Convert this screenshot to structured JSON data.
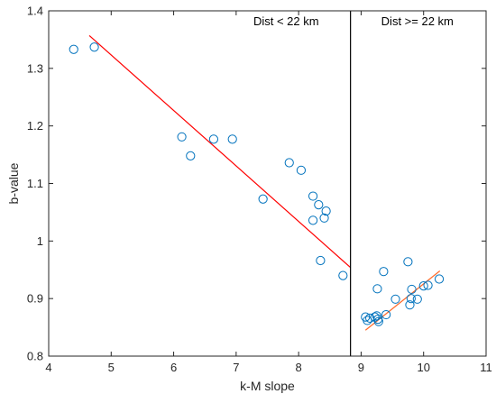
{
  "chart_data": {
    "type": "scatter",
    "title": "",
    "xlabel": "k-M slope",
    "ylabel": "b-value",
    "xlim": [
      4,
      11
    ],
    "ylim": [
      0.8,
      1.4
    ],
    "xticks": [
      4,
      5,
      6,
      7,
      8,
      9,
      10,
      11
    ],
    "yticks": [
      0.8,
      0.9,
      1,
      1.1,
      1.2,
      1.3,
      1.4
    ],
    "xtick_labels": [
      "4",
      "5",
      "6",
      "7",
      "8",
      "9",
      "10",
      "11"
    ],
    "ytick_labels": [
      "0.8",
      "0.9",
      "1",
      "1.1",
      "1.2",
      "1.3",
      "1.4"
    ],
    "grid": false,
    "points": [
      {
        "x": 4.4,
        "y": 1.333
      },
      {
        "x": 4.73,
        "y": 1.337
      },
      {
        "x": 6.13,
        "y": 1.181
      },
      {
        "x": 6.27,
        "y": 1.148
      },
      {
        "x": 6.64,
        "y": 1.177
      },
      {
        "x": 6.94,
        "y": 1.177
      },
      {
        "x": 7.43,
        "y": 1.073
      },
      {
        "x": 7.85,
        "y": 1.136
      },
      {
        "x": 8.04,
        "y": 1.123
      },
      {
        "x": 8.23,
        "y": 1.078
      },
      {
        "x": 8.32,
        "y": 1.063
      },
      {
        "x": 8.44,
        "y": 1.052
      },
      {
        "x": 8.23,
        "y": 1.036
      },
      {
        "x": 8.41,
        "y": 1.04
      },
      {
        "x": 8.35,
        "y": 0.966
      },
      {
        "x": 8.71,
        "y": 0.94
      },
      {
        "x": 9.07,
        "y": 0.868
      },
      {
        "x": 9.1,
        "y": 0.862
      },
      {
        "x": 9.14,
        "y": 0.866
      },
      {
        "x": 9.22,
        "y": 0.868
      },
      {
        "x": 9.25,
        "y": 0.87
      },
      {
        "x": 9.27,
        "y": 0.864
      },
      {
        "x": 9.28,
        "y": 0.86
      },
      {
        "x": 9.26,
        "y": 0.917
      },
      {
        "x": 9.36,
        "y": 0.947
      },
      {
        "x": 9.4,
        "y": 0.872
      },
      {
        "x": 9.55,
        "y": 0.899
      },
      {
        "x": 9.75,
        "y": 0.964
      },
      {
        "x": 9.78,
        "y": 0.889
      },
      {
        "x": 9.8,
        "y": 0.9
      },
      {
        "x": 9.81,
        "y": 0.916
      },
      {
        "x": 9.9,
        "y": 0.899
      },
      {
        "x": 10.0,
        "y": 0.922
      },
      {
        "x": 10.07,
        "y": 0.923
      },
      {
        "x": 10.25,
        "y": 0.934
      }
    ],
    "fit_lines": [
      {
        "x": [
          4.65,
          8.83
        ],
        "y": [
          1.357,
          0.954
        ],
        "color": "#ff0000"
      },
      {
        "x": [
          9.07,
          10.26
        ],
        "y": [
          0.845,
          0.948
        ],
        "color": "#ff6a2a"
      }
    ],
    "divider_x": 8.83,
    "annotations": [
      {
        "text": "Dist < 22 km",
        "x": 7.8,
        "y": 1.375
      },
      {
        "text": "Dist >= 22 km",
        "x": 9.9,
        "y": 1.375
      }
    ],
    "marker_color": "#0072bd"
  }
}
